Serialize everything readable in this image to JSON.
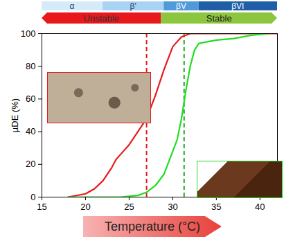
{
  "chart_data": {
    "type": "line",
    "ylabel": "µDE (%)",
    "xlabel": "Temperature (°C)",
    "xlim": [
      15,
      42
    ],
    "xticks": [
      15,
      20,
      25,
      30,
      35,
      40
    ],
    "ylim": [
      0,
      100
    ],
    "yticks": [
      0,
      20,
      40,
      60,
      80,
      100
    ],
    "series": [
      {
        "color": "#e8191c",
        "x": [
          18,
          20,
          21,
          22,
          23,
          23.5,
          24,
          25,
          26,
          27,
          28,
          29,
          30,
          31,
          32,
          42
        ],
        "values": [
          0,
          2,
          5,
          10,
          18,
          23,
          26,
          32,
          40,
          48,
          62,
          78,
          92,
          98,
          100,
          100
        ]
      },
      {
        "color": "#22dd22",
        "x": [
          18,
          24,
          26,
          27,
          28,
          29,
          30,
          30.5,
          31,
          31.5,
          32,
          32.5,
          33,
          35,
          37,
          39,
          41
        ],
        "values": [
          0,
          0,
          1,
          3,
          7,
          14,
          28,
          35,
          48,
          65,
          80,
          90,
          94,
          96,
          97,
          99,
          100
        ]
      }
    ],
    "vlines": [
      {
        "x": 27,
        "color": "#e8191c",
        "line_style": "dashed"
      },
      {
        "x": 31.3,
        "color": "#22aa22",
        "line_style": "dashed"
      }
    ],
    "phases": [
      {
        "label": "α",
        "from": 15,
        "to": 22,
        "color": "#d6ebfa"
      },
      {
        "label": "β'",
        "from": 22,
        "to": 29,
        "color": "#a9d3f2"
      },
      {
        "label": "βV",
        "from": 29,
        "to": 33,
        "color": "#4f9ad8"
      },
      {
        "label": "βVI",
        "from": 33,
        "to": 42,
        "color": "#1f5fa8"
      }
    ],
    "regions": [
      {
        "label": "Unstable",
        "from": 15,
        "to": 28.7,
        "color": "#e8191c"
      },
      {
        "label": "Stable",
        "from": 28.7,
        "to": 42,
        "color": "#8cc63f"
      }
    ]
  }
}
